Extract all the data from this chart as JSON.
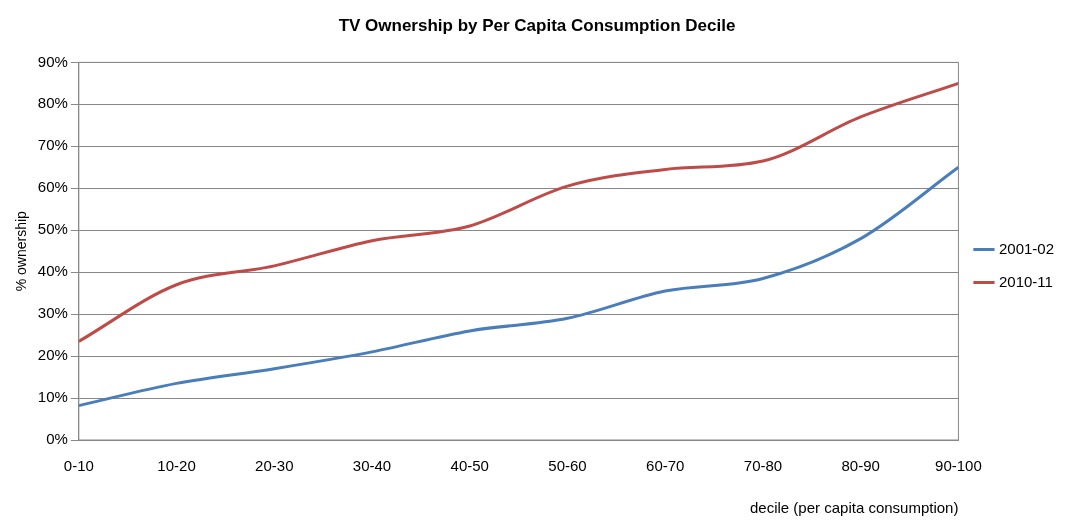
{
  "chart_data": {
    "type": "line",
    "title": "TV Ownership by Per Capita Consumption Decile",
    "xlabel": "decile (per capita consumption)",
    "ylabel": "% ownership",
    "categories": [
      "0-10",
      "10-20",
      "20-30",
      "30-40",
      "40-50",
      "50-60",
      "60-70",
      "70-80",
      "80-90",
      "90-100"
    ],
    "series": [
      {
        "name": "2001-02",
        "color": "#4a7ebb",
        "values": [
          8.2,
          13.5,
          17,
          21,
          26,
          29,
          35.5,
          38.5,
          48,
          65
        ]
      },
      {
        "name": "2010-11",
        "color": "#be4b48",
        "values": [
          23.5,
          37,
          41.5,
          47.5,
          51,
          60.5,
          64.5,
          66.5,
          77,
          85
        ]
      }
    ],
    "ylim": [
      0,
      90
    ],
    "yticks": [
      {
        "value": 0,
        "label": "0%"
      },
      {
        "value": 10,
        "label": "10%"
      },
      {
        "value": 20,
        "label": "20%"
      },
      {
        "value": 30,
        "label": "30%"
      },
      {
        "value": 40,
        "label": "40%"
      },
      {
        "value": 50,
        "label": "50%"
      },
      {
        "value": 60,
        "label": "60%"
      },
      {
        "value": 70,
        "label": "70%"
      },
      {
        "value": 80,
        "label": "80%"
      },
      {
        "value": 90,
        "label": "90%"
      }
    ],
    "grid": "y",
    "legend": "right",
    "marker": "none",
    "line_style": "solid"
  }
}
